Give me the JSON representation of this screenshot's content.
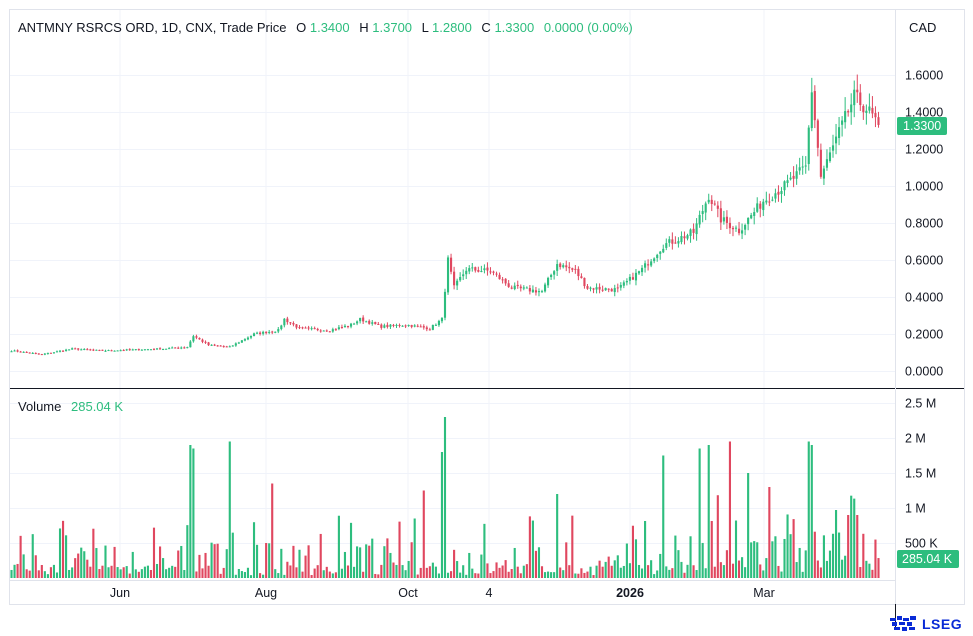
{
  "header": {
    "symbol_text": "ANTMNY RSRCS ORD, 1D, CNX, Trade Price",
    "o_label": "O",
    "o_value": "1.3400",
    "h_label": "H",
    "h_value": "1.3700",
    "l_label": "L",
    "l_value": "1.2800",
    "c_label": "C",
    "c_value": "1.3300",
    "change_value": "0.0000 (0.00%)"
  },
  "currency": "CAD",
  "volume_header": {
    "label": "Volume",
    "value": "285.04 K"
  },
  "last_price_label": "1.3300",
  "last_volume_label": "285.04 K",
  "branding": {
    "text": "LSEG"
  },
  "colors": {
    "up": "#2dbd7e",
    "down": "#e0475f",
    "text": "#131722",
    "grid": "#f0f3fa",
    "axis_line": "#131722"
  },
  "chart_data": [
    {
      "type": "candlestick",
      "title": "ANTMNY RSRCS ORD, 1D, CNX, Trade Price",
      "y_ticks": [
        "1.6000",
        "1.4000",
        "1.2000",
        "1.0000",
        "0.8000",
        "0.6000",
        "0.4000",
        "0.2000",
        "0.0000"
      ],
      "ylim": [
        -0.05,
        1.75
      ],
      "x_ticks": [
        "Jun",
        "Aug",
        "Oct",
        "4",
        "2026",
        "Mar"
      ],
      "last_close": 1.33,
      "anchors": [
        [
          0,
          0.11
        ],
        [
          10,
          0.09
        ],
        [
          20,
          0.12
        ],
        [
          30,
          0.11
        ],
        [
          40,
          0.115
        ],
        [
          50,
          0.12
        ],
        [
          58,
          0.13
        ],
        [
          60,
          0.19
        ],
        [
          65,
          0.14
        ],
        [
          72,
          0.13
        ],
        [
          80,
          0.2
        ],
        [
          88,
          0.22
        ],
        [
          90,
          0.28
        ],
        [
          95,
          0.23
        ],
        [
          105,
          0.22
        ],
        [
          112,
          0.25
        ],
        [
          115,
          0.28
        ],
        [
          122,
          0.24
        ],
        [
          130,
          0.25
        ],
        [
          138,
          0.23
        ],
        [
          142,
          0.28
        ],
        [
          144,
          0.6
        ],
        [
          146,
          0.45
        ],
        [
          150,
          0.55
        ],
        [
          158,
          0.54
        ],
        [
          165,
          0.45
        ],
        [
          175,
          0.43
        ],
        [
          180,
          0.58
        ],
        [
          186,
          0.54
        ],
        [
          190,
          0.45
        ],
        [
          200,
          0.44
        ],
        [
          208,
          0.55
        ],
        [
          215,
          0.68
        ],
        [
          225,
          0.75
        ],
        [
          230,
          0.95
        ],
        [
          234,
          0.82
        ],
        [
          240,
          0.76
        ],
        [
          248,
          0.92
        ],
        [
          255,
          1.0
        ],
        [
          262,
          1.1
        ],
        [
          264,
          1.52
        ],
        [
          267,
          1.05
        ],
        [
          272,
          1.25
        ],
        [
          278,
          1.48
        ],
        [
          282,
          1.42
        ],
        [
          286,
          1.33
        ]
      ]
    },
    {
      "type": "bar",
      "title": "Volume",
      "y_ticks": [
        "2.5 M",
        "2 M",
        "1.5 M",
        "1 M",
        "500 K"
      ],
      "ylim": [
        0,
        2500000
      ],
      "last_value": 285040,
      "spikes": [
        [
          59,
          1900000
        ],
        [
          60,
          1850000
        ],
        [
          72,
          1950000
        ],
        [
          86,
          1350000
        ],
        [
          133,
          850000
        ],
        [
          136,
          1250000
        ],
        [
          142,
          1800000
        ],
        [
          143,
          2300000
        ],
        [
          180,
          1200000
        ],
        [
          215,
          1750000
        ],
        [
          227,
          1850000
        ],
        [
          230,
          1900000
        ],
        [
          237,
          1950000
        ],
        [
          243,
          1500000
        ],
        [
          250,
          1300000
        ],
        [
          263,
          1950000
        ],
        [
          264,
          1900000
        ],
        [
          276,
          900000
        ],
        [
          279,
          900000
        ]
      ]
    }
  ]
}
